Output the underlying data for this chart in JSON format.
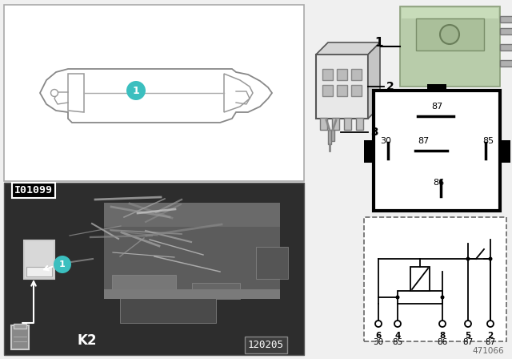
{
  "fig_number": "471066",
  "photo_label": "120205",
  "io_label": "I01099",
  "k2_label": "K2",
  "bg_color": "#f0f0f0",
  "white": "#ffffff",
  "black": "#000000",
  "dark_photo": "#3a3a3a",
  "teal": "#3bbfbf",
  "green_relay": "#b8ccaa",
  "item1_label": "1",
  "connector_label2": "2",
  "connector_label3": "3",
  "pin_top": "87",
  "pin_left": "30",
  "pin_mid": "87",
  "pin_right": "85",
  "pin_bottom": "86",
  "bottom_labels_row1": [
    "6",
    "4",
    "8",
    "5",
    "2"
  ],
  "bottom_labels_row2": [
    "30",
    "85",
    "86",
    "87",
    "87"
  ]
}
